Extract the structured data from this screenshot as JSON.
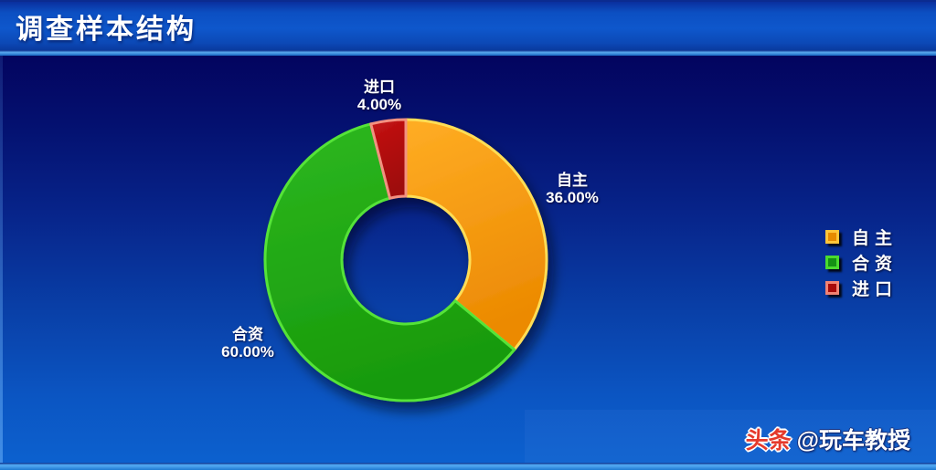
{
  "header": {
    "title": "调查样本结构"
  },
  "chart_data": {
    "type": "pie",
    "donut": true,
    "title": "调查样本结构",
    "start_angle_deg": 0,
    "direction": "clockwise",
    "legend_position": "right",
    "grid": false,
    "geometry": {
      "outer_radius": 154,
      "inner_radius": 70
    },
    "slices": [
      {
        "label": "自主",
        "value": 36,
        "pct_label": "36.00%",
        "fill_light": "#FFAD24",
        "fill_dark": "#EC8A02",
        "edge": "#FFDD55"
      },
      {
        "label": "合资",
        "value": 60,
        "pct_label": "60.00%",
        "fill_light": "#2DB81F",
        "fill_dark": "#189A0C",
        "edge": "#55E339"
      },
      {
        "label": "进口",
        "value": 4,
        "pct_label": "4.00%",
        "fill_light": "#C51414",
        "fill_dark": "#9E0808",
        "edge": "#F29180"
      }
    ],
    "legend": [
      {
        "label": "自主",
        "swatch_fill": "#E78A00",
        "swatch_edge": "#FFC53A"
      },
      {
        "label": "合资",
        "swatch_fill": "#149114",
        "swatch_edge": "#4ADB2E"
      },
      {
        "label": "进口",
        "swatch_fill": "#A80A0A",
        "swatch_edge": "#F28373"
      }
    ]
  },
  "watermark": {
    "brand": "头条",
    "handle": "@玩车教授"
  },
  "colors": {
    "titlebar_blue": "#0E57CC",
    "background_top": "#03045F",
    "background_bottom": "#0C62D0",
    "separator_light_blue": "#5AAAF0",
    "text_white": "#FFFFFF",
    "watermark_red": "#E5392B"
  }
}
